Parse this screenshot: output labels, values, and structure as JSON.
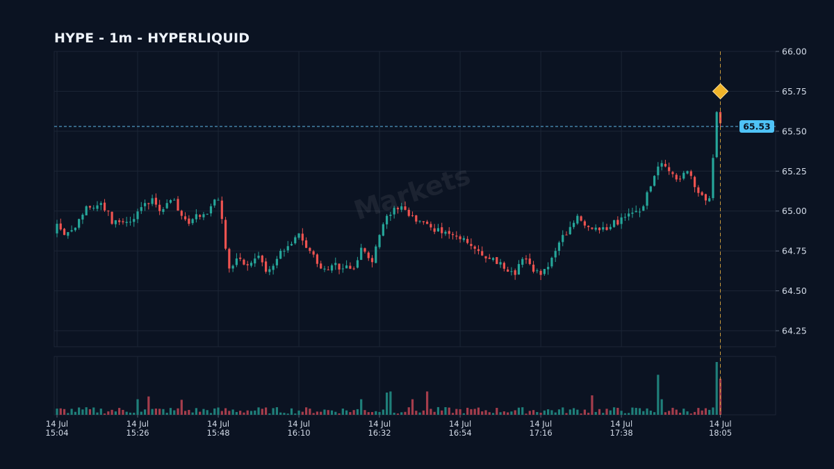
{
  "chart_title": "HYPE - 1m - HYPERLIQUID",
  "watermark": "Markets",
  "colors": {
    "background": "#0b1322",
    "up": "#26a69a",
    "down": "#ef5350",
    "grid": "#1c2636",
    "last_price_line": "#5fb8e8",
    "last_price_tag": "#4fc3f7",
    "marker": "#f0b429",
    "marker_line": "#c99a3c"
  },
  "chart_data": {
    "type": "candlestick",
    "title": "HYPE - 1m - HYPERLIQUID",
    "ylim": [
      64.15,
      66.0
    ],
    "y_ticks": [
      "66.00",
      "65.75",
      "65.50",
      "65.25",
      "65.00",
      "64.75",
      "64.50",
      "64.25"
    ],
    "x_ticks": [
      {
        "minute": 0,
        "date": "14 Jul",
        "time": "15:04"
      },
      {
        "minute": 22,
        "date": "14 Jul",
        "time": "15:26"
      },
      {
        "minute": 44,
        "date": "14 Jul",
        "time": "15:48"
      },
      {
        "minute": 66,
        "date": "14 Jul",
        "time": "16:10"
      },
      {
        "minute": 88,
        "date": "14 Jul",
        "time": "16:32"
      },
      {
        "minute": 110,
        "date": "14 Jul",
        "time": "16:54"
      },
      {
        "minute": 132,
        "date": "14 Jul",
        "time": "17:16"
      },
      {
        "minute": 154,
        "date": "14 Jul",
        "time": "17:38"
      },
      {
        "minute": 181,
        "date": "14 Jul",
        "time": "18:05"
      }
    ],
    "last_price": 65.53,
    "last_price_label": "65.53",
    "marker": {
      "minute": 181,
      "price": 65.75
    },
    "anchors": [
      [
        0,
        64.92
      ],
      [
        2,
        64.85
      ],
      [
        4,
        64.88
      ],
      [
        6,
        64.95
      ],
      [
        8,
        65.03
      ],
      [
        10,
        65.02
      ],
      [
        12,
        65.05
      ],
      [
        14,
        65.0
      ],
      [
        15,
        64.92
      ],
      [
        18,
        64.93
      ],
      [
        21,
        64.95
      ],
      [
        24,
        65.05
      ],
      [
        26,
        65.08
      ],
      [
        28,
        65.0
      ],
      [
        30,
        65.05
      ],
      [
        32,
        65.07
      ],
      [
        34,
        64.97
      ],
      [
        36,
        64.92
      ],
      [
        38,
        64.98
      ],
      [
        40,
        64.98
      ],
      [
        42,
        65.03
      ],
      [
        44,
        65.07
      ],
      [
        47,
        64.64
      ],
      [
        50,
        64.7
      ],
      [
        52,
        64.66
      ],
      [
        55,
        64.72
      ],
      [
        57,
        64.62
      ],
      [
        60,
        64.7
      ],
      [
        63,
        64.78
      ],
      [
        66,
        64.86
      ],
      [
        69,
        64.75
      ],
      [
        72,
        64.64
      ],
      [
        75,
        64.66
      ],
      [
        78,
        64.64
      ],
      [
        81,
        64.64
      ],
      [
        83,
        64.77
      ],
      [
        86,
        64.68
      ],
      [
        88,
        64.85
      ],
      [
        90,
        64.97
      ],
      [
        92,
        65.02
      ],
      [
        94,
        65.03
      ],
      [
        97,
        64.97
      ],
      [
        100,
        64.93
      ],
      [
        103,
        64.87
      ],
      [
        106,
        64.87
      ],
      [
        109,
        64.84
      ],
      [
        112,
        64.8
      ],
      [
        115,
        64.75
      ],
      [
        118,
        64.7
      ],
      [
        121,
        64.68
      ],
      [
        123,
        64.62
      ],
      [
        125,
        64.6
      ],
      [
        127,
        64.7
      ],
      [
        130,
        64.62
      ],
      [
        132,
        64.6
      ],
      [
        134,
        64.65
      ],
      [
        136,
        64.75
      ],
      [
        138,
        64.85
      ],
      [
        140,
        64.9
      ],
      [
        142,
        64.97
      ],
      [
        145,
        64.9
      ],
      [
        148,
        64.88
      ],
      [
        151,
        64.9
      ],
      [
        154,
        64.96
      ],
      [
        157,
        64.99
      ],
      [
        160,
        65.03
      ],
      [
        163,
        65.22
      ],
      [
        165,
        65.3
      ],
      [
        167,
        65.25
      ],
      [
        170,
        65.2
      ],
      [
        172,
        65.25
      ],
      [
        174,
        65.15
      ],
      [
        176,
        65.1
      ],
      [
        178,
        65.08
      ],
      [
        180,
        65.62
      ],
      [
        181,
        65.55
      ]
    ],
    "volume": {
      "spikes": [
        {
          "minute": 164,
          "value": 0.72
        },
        {
          "minute": 165,
          "value": 0.28
        },
        {
          "minute": 180,
          "value": 0.95
        },
        {
          "minute": 181,
          "value": 0.65
        },
        {
          "minute": 91,
          "value": 0.42
        },
        {
          "minute": 90,
          "value": 0.4
        },
        {
          "minute": 101,
          "value": 0.42
        },
        {
          "minute": 83,
          "value": 0.28
        },
        {
          "minute": 146,
          "value": 0.35
        },
        {
          "minute": 22,
          "value": 0.28
        },
        {
          "minute": 25,
          "value": 0.33
        },
        {
          "minute": 34,
          "value": 0.27
        },
        {
          "minute": 97,
          "value": 0.28
        }
      ]
    }
  }
}
